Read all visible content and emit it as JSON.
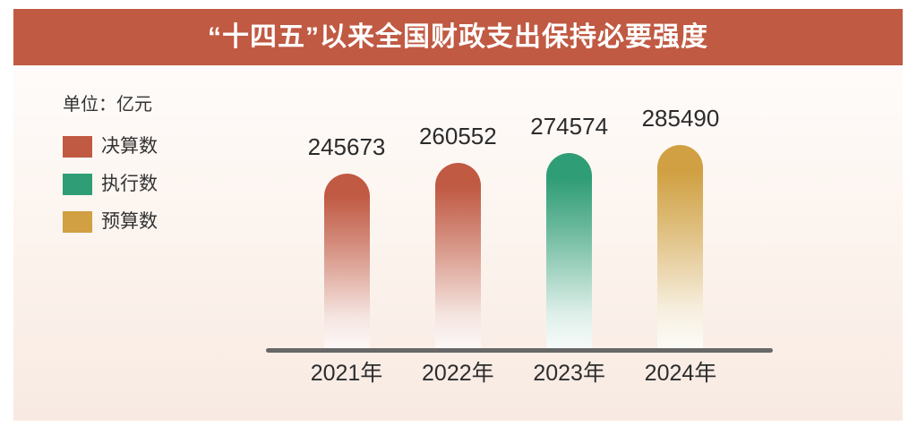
{
  "title": "“十四五”以来全国财政支出保持必要强度",
  "unit_label": "单位：亿元",
  "legend": [
    {
      "key": "final-accounts",
      "label": "决算数",
      "color": "#c05a43"
    },
    {
      "key": "executed",
      "label": "执行数",
      "color": "#2f9d75"
    },
    {
      "key": "budget",
      "label": "预算数",
      "color": "#d0a042"
    }
  ],
  "colors": {
    "banner": "#c05a43",
    "axis_line": "#686868",
    "panel_top": "#fffefe",
    "panel_bottom": "#f8eae2",
    "text": "#2b2b2b"
  },
  "chart_data": {
    "type": "bar",
    "title": "“十四五”以来全国财政支出保持必要强度",
    "unit": "亿元",
    "categories": [
      "2021年",
      "2022年",
      "2023年",
      "2024年"
    ],
    "values": [
      245673,
      260552,
      274574,
      285490
    ],
    "value_labels": [
      "245673",
      "260552",
      "274574",
      "285490"
    ],
    "bar_series": [
      "决算数",
      "决算数",
      "执行数",
      "预算数"
    ],
    "legend_entries": [
      "决算数",
      "执行数",
      "预算数"
    ],
    "ylim": [
      0,
      285490
    ],
    "grid": false,
    "legend_position": "top-left",
    "value_labels_shown": true
  }
}
